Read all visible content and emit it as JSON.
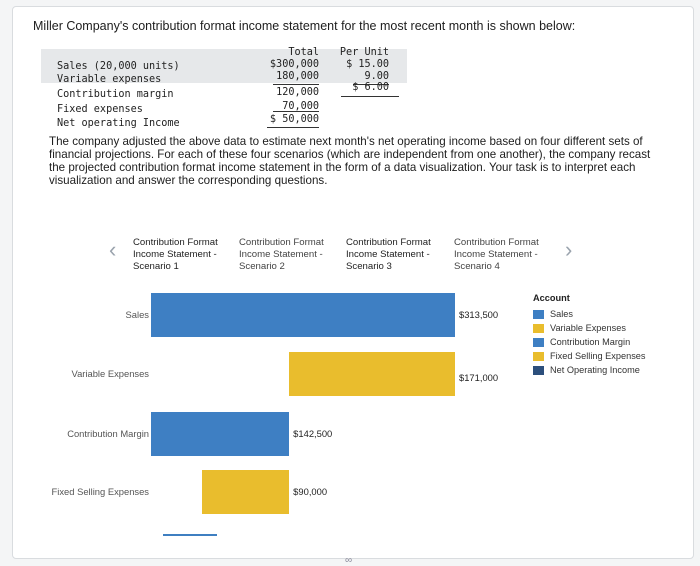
{
  "intro": "Miller Company's contribution format income statement for the most recent month is shown below:",
  "statement": {
    "headers": {
      "total": "Total",
      "per_unit": "Per Unit"
    },
    "rows": [
      {
        "label": "Sales (20,000 units)",
        "total": "$300,000",
        "per_unit": "$ 15.00"
      },
      {
        "label": "Variable expenses",
        "total": "180,000",
        "per_unit": "9.00"
      },
      {
        "label": "Contribution margin",
        "total": "120,000",
        "per_unit": "$ 6.00"
      },
      {
        "label": "Fixed expenses",
        "total": "70,000",
        "per_unit": ""
      },
      {
        "label": "Net operating Income",
        "total": "$ 50,000",
        "per_unit": ""
      }
    ]
  },
  "paragraph": "The company adjusted the above data to estimate next month's net operating income based on four different sets of financial projections. For each of these four scenarios (which are independent from one another), the company recast the projected contribution format income statement in the form of a data visualization. Your task is to interpret each visualization and answer the corresponding questions.",
  "tabs": [
    {
      "line1": "Contribution Format",
      "line2": "Income Statement -",
      "line3": "Scenario 1"
    },
    {
      "line1": "Contribution Format",
      "line2": "Income Statement -",
      "line3": "Scenario 2"
    },
    {
      "line1": "Contribution Format",
      "line2": "Income Statement -",
      "line3": "Scenario 3"
    },
    {
      "line1": "Contribution Format",
      "line2": "Income Statement -",
      "line3": "Scenario 4"
    }
  ],
  "nav": {
    "prev": "‹",
    "next": "›"
  },
  "chart_data": {
    "type": "bar",
    "orientation": "horizontal",
    "layout": "waterfall",
    "categories": [
      "Sales",
      "Variable Expenses",
      "Contribution Margin",
      "Fixed Selling Expenses"
    ],
    "values": [
      313500,
      171000,
      142500,
      90000
    ],
    "value_labels": [
      "$313,500",
      "$171,000",
      "$142,500",
      "$90,000"
    ],
    "colors": [
      "#3e7fc3",
      "#e9bd2d",
      "#3e7fc3",
      "#e9bd2d"
    ],
    "legend": {
      "title": "Account",
      "placement": "right",
      "items": [
        {
          "name": "Sales",
          "color": "#3e7fc3"
        },
        {
          "name": "Variable Expenses",
          "color": "#e9bd2d"
        },
        {
          "name": "Contribution Margin",
          "color": "#3e7fc3"
        },
        {
          "name": "Fixed Selling Expenses",
          "color": "#e9bd2d"
        },
        {
          "name": "Net Operating Income",
          "color": "#2c4f7c"
        }
      ]
    },
    "net_operating_income": 52500
  },
  "footer_icon": "link-icon"
}
